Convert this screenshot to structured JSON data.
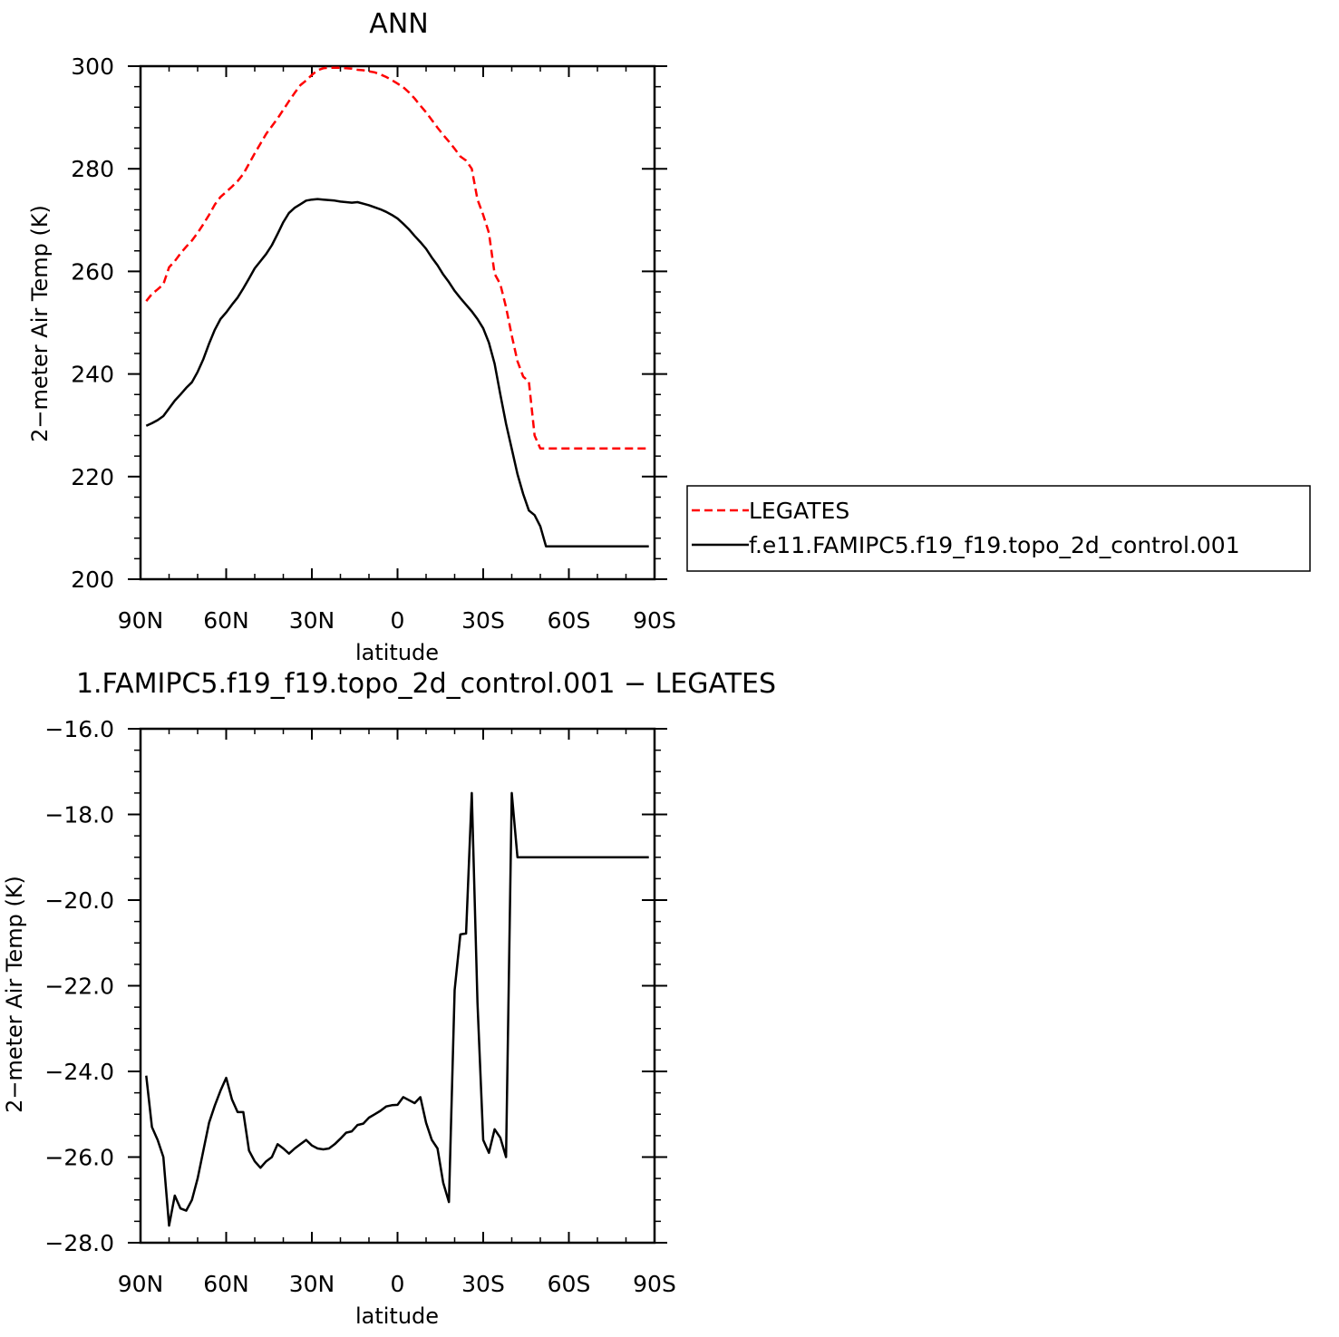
{
  "colors": {
    "observation": "#ff0000",
    "model": "#000000"
  },
  "legend": {
    "items": [
      {
        "label": "LEGATES",
        "style": "dashed",
        "color": "#ff0000"
      },
      {
        "label": "f.e11.FAMIPC5.f19_f19.topo_2d_control.001",
        "style": "solid",
        "color": "#000000"
      }
    ]
  },
  "chart_data": [
    {
      "type": "line",
      "title": "ANN",
      "xlabel": "latitude",
      "ylabel": "2−meter Air Temp (K)",
      "xlim": [
        90,
        -90
      ],
      "ylim": [
        200,
        300
      ],
      "x_ticks": [
        90,
        60,
        30,
        0,
        -30,
        -60,
        -90
      ],
      "x_tick_labels": [
        "90N",
        "60N",
        "30N",
        "0",
        "30S",
        "60S",
        "90S"
      ],
      "y_ticks": [
        200,
        220,
        240,
        260,
        280,
        300
      ],
      "y_tick_labels": [
        "200",
        "220",
        "240",
        "260",
        "280",
        "300"
      ],
      "grid": false,
      "legend_position": "right",
      "series": [
        {
          "name": "LEGATES",
          "style": "dashed",
          "x": [
            88,
            86,
            84,
            82,
            80,
            78,
            76,
            74,
            72,
            70,
            68,
            66,
            64,
            62,
            60,
            58,
            56,
            54,
            52,
            50,
            48,
            46,
            44,
            42,
            40,
            38,
            36,
            34,
            32,
            30,
            28,
            26,
            24,
            22,
            20,
            18,
            16,
            14,
            12,
            10,
            8,
            6,
            4,
            2,
            0,
            -2,
            -4,
            -6,
            -8,
            -10,
            -12,
            -14,
            -16,
            -18,
            -20,
            -22,
            -24,
            -26,
            -28,
            -30,
            -32,
            -34,
            -36,
            -38,
            -40,
            -42,
            -44,
            -46,
            -48,
            -50,
            -52,
            -54,
            -56,
            -58,
            -60,
            -62,
            -64,
            -66,
            -68,
            -70,
            -72,
            -74,
            -76,
            -78,
            -80,
            -82,
            -84,
            -86,
            -88
          ],
          "values": [
            254.2,
            255.6,
            256.5,
            257.5,
            260.8,
            262.0,
            263.5,
            264.8,
            266.0,
            267.5,
            269.2,
            271.0,
            273.0,
            274.5,
            275.5,
            276.5,
            277.6,
            279.0,
            281.0,
            283.0,
            284.9,
            286.8,
            288.3,
            289.8,
            291.5,
            293.2,
            294.8,
            296.3,
            297.2,
            298.3,
            299.2,
            299.6,
            299.7,
            299.7,
            299.7,
            299.6,
            299.5,
            299.3,
            299.2,
            299.0,
            298.8,
            298.4,
            297.9,
            297.3,
            296.6,
            295.9,
            294.9,
            293.7,
            292.3,
            291.0,
            289.5,
            288.0,
            286.6,
            285.3,
            283.9,
            282.4,
            281.6,
            280.0,
            274.0,
            271.0,
            267.5,
            259.5,
            257.5,
            253.0,
            247.5,
            242.5,
            239.5,
            238.5,
            228.0,
            225.5,
            225.5,
            225.5,
            225.5,
            225.5,
            225.5,
            225.5,
            225.5,
            225.5,
            225.5,
            225.5,
            225.5,
            225.5,
            225.5,
            225.5,
            225.5,
            225.5,
            225.5,
            225.5,
            225.5
          ]
        },
        {
          "name": "f.e11.FAMIPC5.f19_f19.topo_2d_control.001",
          "style": "solid",
          "x": [
            88,
            86,
            84,
            82,
            80,
            78,
            76,
            74,
            72,
            70,
            68,
            66,
            64,
            62,
            60,
            58,
            56,
            54,
            52,
            50,
            48,
            46,
            44,
            42,
            40,
            38,
            36,
            34,
            32,
            30,
            28,
            26,
            24,
            22,
            20,
            18,
            16,
            14,
            12,
            10,
            8,
            6,
            4,
            2,
            0,
            -2,
            -4,
            -6,
            -8,
            -10,
            -12,
            -14,
            -16,
            -18,
            -20,
            -22,
            -24,
            -26,
            -28,
            -30,
            -32,
            -34,
            -36,
            -38,
            -40,
            -42,
            -44,
            -46,
            -48,
            -50,
            -52,
            -54,
            -56,
            -58,
            -60,
            -62,
            -64,
            -66,
            -68,
            -70,
            -72,
            -74,
            -76,
            -78,
            -80,
            -82,
            -84,
            -86,
            -88
          ],
          "values": [
            229.9,
            230.4,
            231.0,
            231.8,
            233.3,
            234.8,
            236.0,
            237.3,
            238.4,
            240.4,
            242.9,
            245.9,
            248.6,
            250.7,
            252.0,
            253.5,
            254.9,
            256.7,
            258.6,
            260.6,
            262.0,
            263.4,
            265.1,
            267.3,
            269.6,
            271.4,
            272.4,
            273.1,
            273.8,
            274.0,
            274.1,
            274.0,
            273.9,
            273.8,
            273.6,
            273.5,
            273.4,
            273.5,
            273.2,
            272.9,
            272.5,
            272.1,
            271.6,
            271.0,
            270.3,
            269.3,
            268.2,
            266.9,
            265.7,
            264.4,
            262.7,
            261.2,
            259.4,
            257.9,
            256.2,
            254.8,
            253.5,
            252.2,
            250.7,
            248.9,
            246.1,
            242.0,
            236.0,
            230.3,
            225.4,
            220.5,
            216.6,
            213.4,
            212.5,
            210.3,
            206.4,
            206.4,
            206.4,
            206.4,
            206.4,
            206.4,
            206.4,
            206.4,
            206.4,
            206.4,
            206.4,
            206.4,
            206.4,
            206.4,
            206.4,
            206.4,
            206.4,
            206.4,
            206.4
          ]
        }
      ]
    },
    {
      "type": "line",
      "title": "1.FAMIPC5.f19_f19.topo_2d_control.001  −  LEGATES",
      "xlabel": "latitude",
      "ylabel": "2−meter Air Temp (K)",
      "xlim": [
        90,
        -90
      ],
      "ylim": [
        -28,
        -16
      ],
      "x_ticks": [
        90,
        60,
        30,
        0,
        -30,
        -60,
        -90
      ],
      "x_tick_labels": [
        "90N",
        "60N",
        "30N",
        "0",
        "30S",
        "60S",
        "90S"
      ],
      "y_ticks": [
        -28,
        -26,
        -24,
        -22,
        -20,
        -18,
        -16
      ],
      "y_tick_labels": [
        "−28.0",
        "−26.0",
        "−24.0",
        "−22.0",
        "−20.0",
        "−18.0",
        "−16.0"
      ],
      "grid": false,
      "series": [
        {
          "style": "solid",
          "x": [
            88,
            86,
            84,
            82,
            80,
            78,
            76,
            74,
            72,
            70,
            68,
            66,
            64,
            62,
            60,
            58,
            56,
            54,
            52,
            50,
            48,
            46,
            44,
            42,
            40,
            38,
            36,
            34,
            32,
            30,
            28,
            26,
            24,
            22,
            20,
            18,
            16,
            14,
            12,
            10,
            8,
            6,
            4,
            2,
            0,
            -2,
            -4,
            -6,
            -8,
            -10,
            -12,
            -14,
            -16,
            -18,
            -20,
            -22,
            -24,
            -26,
            -28,
            -30,
            -32,
            -34,
            -36,
            -38,
            -40,
            -42,
            -44,
            -46,
            -48,
            -50,
            -52,
            -54,
            -56,
            -58,
            -60,
            -62,
            -64,
            -66,
            -68,
            -70,
            -72,
            -74,
            -76,
            -78,
            -80,
            -82,
            -84,
            -86,
            -88
          ],
          "values": [
            -24.1,
            -25.3,
            -25.6,
            -26.0,
            -27.6,
            -26.9,
            -27.2,
            -27.25,
            -27.0,
            -26.5,
            -25.85,
            -25.2,
            -24.8,
            -24.45,
            -24.15,
            -24.65,
            -24.95,
            -24.95,
            -25.85,
            -26.1,
            -26.25,
            -26.1,
            -26.0,
            -25.7,
            -25.8,
            -25.92,
            -25.8,
            -25.7,
            -25.6,
            -25.73,
            -25.8,
            -25.82,
            -25.8,
            -25.7,
            -25.57,
            -25.43,
            -25.4,
            -25.25,
            -25.22,
            -25.08,
            -25.0,
            -24.92,
            -24.82,
            -24.79,
            -24.78,
            -24.6,
            -24.67,
            -24.74,
            -24.6,
            -25.2,
            -25.6,
            -25.8,
            -26.6,
            -27.05,
            -22.1,
            -20.8,
            -20.78,
            -17.5,
            -22.4,
            -25.6,
            -25.9,
            -25.35,
            -25.55,
            -26.0,
            -17.5,
            -19.0,
            -19.0,
            -19.0,
            -19.0,
            -19.0,
            -19.0,
            -19.0,
            -19.0,
            -19.0,
            -19.0,
            -19.0,
            -19.0,
            -19.0,
            -19.0,
            -19.0,
            -19.0,
            -19.0,
            -19.0,
            -19.0,
            -19.0,
            -19.0,
            -19.0,
            -19.0,
            -19.0
          ]
        }
      ]
    }
  ]
}
